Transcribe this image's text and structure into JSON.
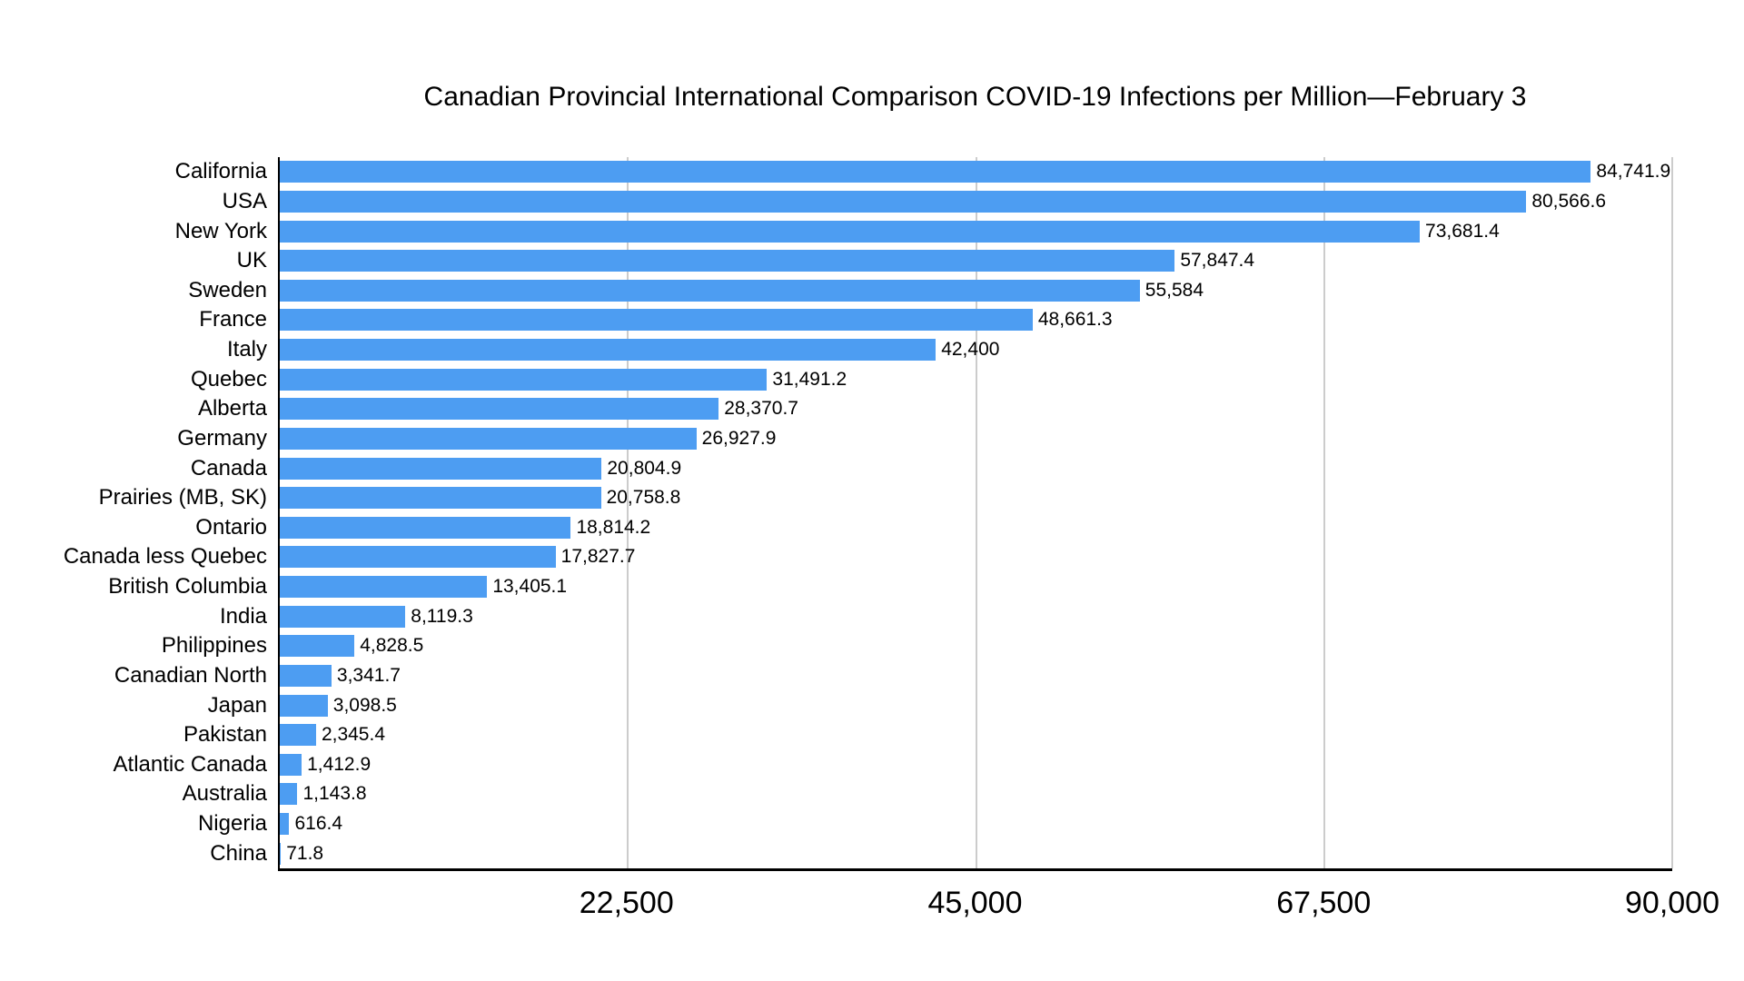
{
  "chart_data": {
    "type": "bar",
    "orientation": "horizontal",
    "title": "Canadian Provincial International Comparison COVID-19 Infections per Million—February 3",
    "categories": [
      "California",
      "USA",
      "New York",
      "UK",
      "Sweden",
      "France",
      "Italy",
      "Quebec",
      "Alberta",
      "Germany",
      "Canada",
      "Prairies (MB, SK)",
      "Ontario",
      "Canada less Quebec",
      "British Columbia",
      "India",
      "Philippines",
      "Canadian North",
      "Japan",
      "Pakistan",
      "Atlantic Canada",
      "Australia",
      "Nigeria",
      "China"
    ],
    "values": [
      84741.9,
      80566.6,
      73681.4,
      57847.4,
      55584,
      48661.3,
      42400,
      31491.2,
      28370.7,
      26927.9,
      20804.9,
      20758.8,
      18814.2,
      17827.7,
      13405.1,
      8119.3,
      4828.5,
      3341.7,
      3098.5,
      2345.4,
      1412.9,
      1143.8,
      616.4,
      71.8
    ],
    "value_labels": [
      "84,741.9",
      "80,566.6",
      "73,681.4",
      "57,847.4",
      "55,584",
      "48,661.3",
      "42,400",
      "31,491.2",
      "28,370.7",
      "26,927.9",
      "20,804.9",
      "20,758.8",
      "18,814.2",
      "17,827.7",
      "13,405.1",
      "8,119.3",
      "4,828.5",
      "3,341.7",
      "3,098.5",
      "2,345.4",
      "1,412.9",
      "1,143.8",
      "616.4",
      "71.8"
    ],
    "xlabel": "",
    "ylabel": "",
    "xlim": [
      0,
      90000
    ],
    "x_ticks": [
      {
        "value": 22500,
        "label": "22,500"
      },
      {
        "value": 45000,
        "label": "45,000"
      },
      {
        "value": 67500,
        "label": "67,500"
      },
      {
        "value": 90000,
        "label": "90,000"
      }
    ],
    "grid": true,
    "legend": false,
    "bar_color": "#4d9df2",
    "gridline_color": "#cccccc",
    "axis_color": "#000000",
    "text_color": "#000000",
    "background_color": "#ffffff"
  }
}
